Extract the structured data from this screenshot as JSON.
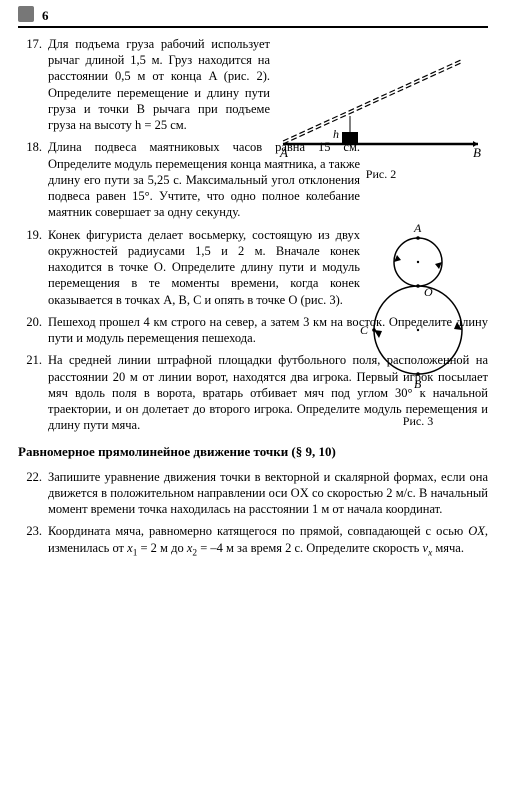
{
  "page_number": "6",
  "problems": [
    {
      "num": "17.",
      "text": "Для подъема груза рабочий использует рычаг длиной 1,5 м. Груз находится на расстоянии 0,5 м от конца A (рис. 2). Определите перемещение и длину пути груза и точки B рычага при подъеме груза на высоту h = 25 см."
    },
    {
      "num": "18.",
      "text": "Длина подвеса маятниковых часов равна 15 см. Определите модуль перемещения конца маятника, а также длину его пути за 5,25 с. Максимальный угол отклонения подвеса равен 15°. Учтите, что одно полное колебание маятник совершает за одну секунду."
    },
    {
      "num": "19.",
      "text": "Конек фигуриста делает восьмерку, состоящую из двух окружностей радиусами 1,5 и 2 м. Вначале конек находится в точке O. Определите длину пути и модуль перемещения в те моменты времени, когда конек оказывается в точках A, B, C и опять в точке O (рис. 3)."
    },
    {
      "num": "20.",
      "text": "Пешеход прошел 4 км строго на север, а затем 3 км на восток. Определите длину пути и модуль перемещения пешехода."
    },
    {
      "num": "21.",
      "text": "На средней линии штрафной площадки футбольного поля, расположенной на расстоянии 20 м от линии ворот, находятся два игрока. Первый игрок посылает мяч вдоль поля в ворота, вратарь отбивает мяч под углом 30° к начальной траектории, и он долетает до второго игрока. Определите модуль перемещения и длину пути мяча."
    }
  ],
  "section_heading": "Равномерное прямолинейное движение точки (§ 9, 10)",
  "problems2": [
    {
      "num": "22.",
      "text": "Запишите уравнение движения точки в векторной и скалярной формах, если она движется в положительном направлении оси OX со скоростью 2 м/с. В начальный момент времени точка находилась на расстоянии 1 м от начала координат."
    },
    {
      "num": "23.",
      "text_html": "Координата мяча, равномерно катящегося по прямой, совпадающей с осью <span class=\"italic\">OX</span>, изменилась от <span class=\"italic\">x</span><span class=\"sub\">1</span> = 2 м до <span class=\"italic\">x</span><span class=\"sub\">2</span> = –4 м за время 2 с. Определите скорость <span class=\"italic\">v<span class=\"sub\">x</span></span> мяча."
    }
  ],
  "fig2": {
    "caption": "Рис. 2",
    "label_A": "A",
    "label_B": "B",
    "label_h": "h"
  },
  "fig3": {
    "caption": "Рис. 3",
    "label_A": "A",
    "label_B": "B",
    "label_C": "C",
    "label_O": "O"
  }
}
